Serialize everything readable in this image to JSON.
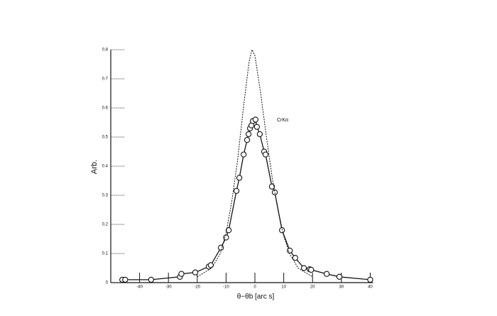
{
  "chart_data": {
    "type": "line",
    "x_label": "θ−θb [arc s]",
    "y_label": "Arb.",
    "annotation": "CrKα",
    "xlim": [
      -50,
      41
    ],
    "ylim": [
      0,
      0.8
    ],
    "xticks": [
      -40,
      -30,
      -20,
      -10,
      0,
      10,
      20,
      30,
      40
    ],
    "yticks": [
      0,
      0.1,
      0.2,
      0.3,
      0.4,
      0.5,
      0.6,
      0.7,
      0.8
    ],
    "series": [
      {
        "color": "#111111",
        "dashed": false,
        "markers": true,
        "x": [
          -46,
          -45,
          -36,
          -26,
          -25.5,
          -20.7,
          -16,
          -15.3,
          -11.8,
          -10,
          -9.1,
          -6.4,
          -5.4,
          -3.9,
          -2.7,
          -2.2,
          -1.7,
          -1.2,
          -0.7,
          0.2,
          0.7,
          1.7,
          3.2,
          3.7,
          5.9,
          6.9,
          9.4,
          12.1,
          14,
          17,
          19,
          19.5,
          24.9,
          29.3,
          40
        ],
        "values": [
          0.01,
          0.01,
          0.01,
          0.02,
          0.03,
          0.035,
          0.055,
          0.06,
          0.12,
          0.155,
          0.18,
          0.315,
          0.36,
          0.44,
          0.49,
          0.51,
          0.53,
          0.54,
          0.555,
          0.56,
          0.535,
          0.51,
          0.45,
          0.44,
          0.33,
          0.31,
          0.18,
          0.11,
          0.085,
          0.05,
          0.046,
          0.044,
          0.03,
          0.02,
          0.01
        ]
      },
      {
        "color": "#111111",
        "dashed": true,
        "markers": false,
        "x": [
          -20,
          -15,
          -12,
          -10,
          -8,
          -6,
          -4,
          -2,
          -1,
          0,
          2,
          4,
          6,
          8,
          10,
          12,
          15,
          20
        ],
        "values": [
          0.02,
          0.05,
          0.1,
          0.17,
          0.28,
          0.42,
          0.6,
          0.76,
          0.8,
          0.78,
          0.65,
          0.5,
          0.36,
          0.25,
          0.16,
          0.1,
          0.05,
          0.02
        ]
      }
    ]
  }
}
